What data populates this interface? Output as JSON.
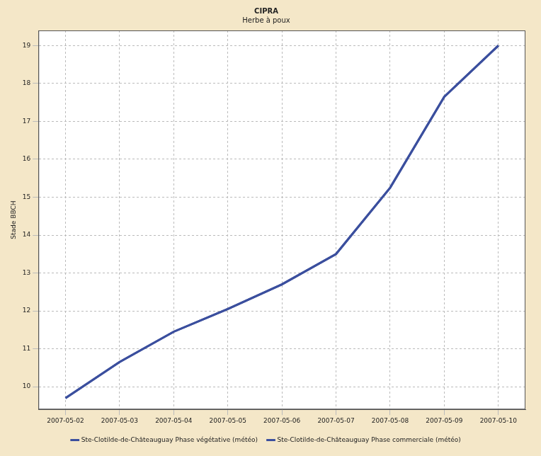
{
  "chart_data": {
    "type": "line",
    "title": "CIPRA",
    "subtitle": "Herbe à poux",
    "y_label": "Stade BBCH",
    "categories": [
      "2007-05-02",
      "2007-05-03",
      "2007-05-04",
      "2007-05-05",
      "2007-05-06",
      "2007-05-07",
      "2007-05-08",
      "2007-05-09",
      "2007-05-10"
    ],
    "series": [
      {
        "name": "Ste-Clotilde-de-Châteauguay Phase végétative (météo)",
        "color": "#3b4f9e",
        "values": [
          9.7,
          10.65,
          11.45,
          12.05,
          12.7,
          13.5,
          15.25,
          17.65,
          19.0
        ]
      },
      {
        "name": "Ste-Clotilde-de-Châteauguay Phase commerciale (météo)",
        "color": "#3b4f9e",
        "values": [
          9.7,
          10.65,
          11.45,
          12.05,
          12.7,
          13.5,
          15.25,
          17.65,
          19.0
        ]
      }
    ],
    "ylim": [
      9.4,
      19.4
    ],
    "yticks": [
      10,
      11,
      12,
      13,
      14,
      15,
      16,
      17,
      18,
      19
    ],
    "grid": true,
    "legend": "bottom"
  }
}
